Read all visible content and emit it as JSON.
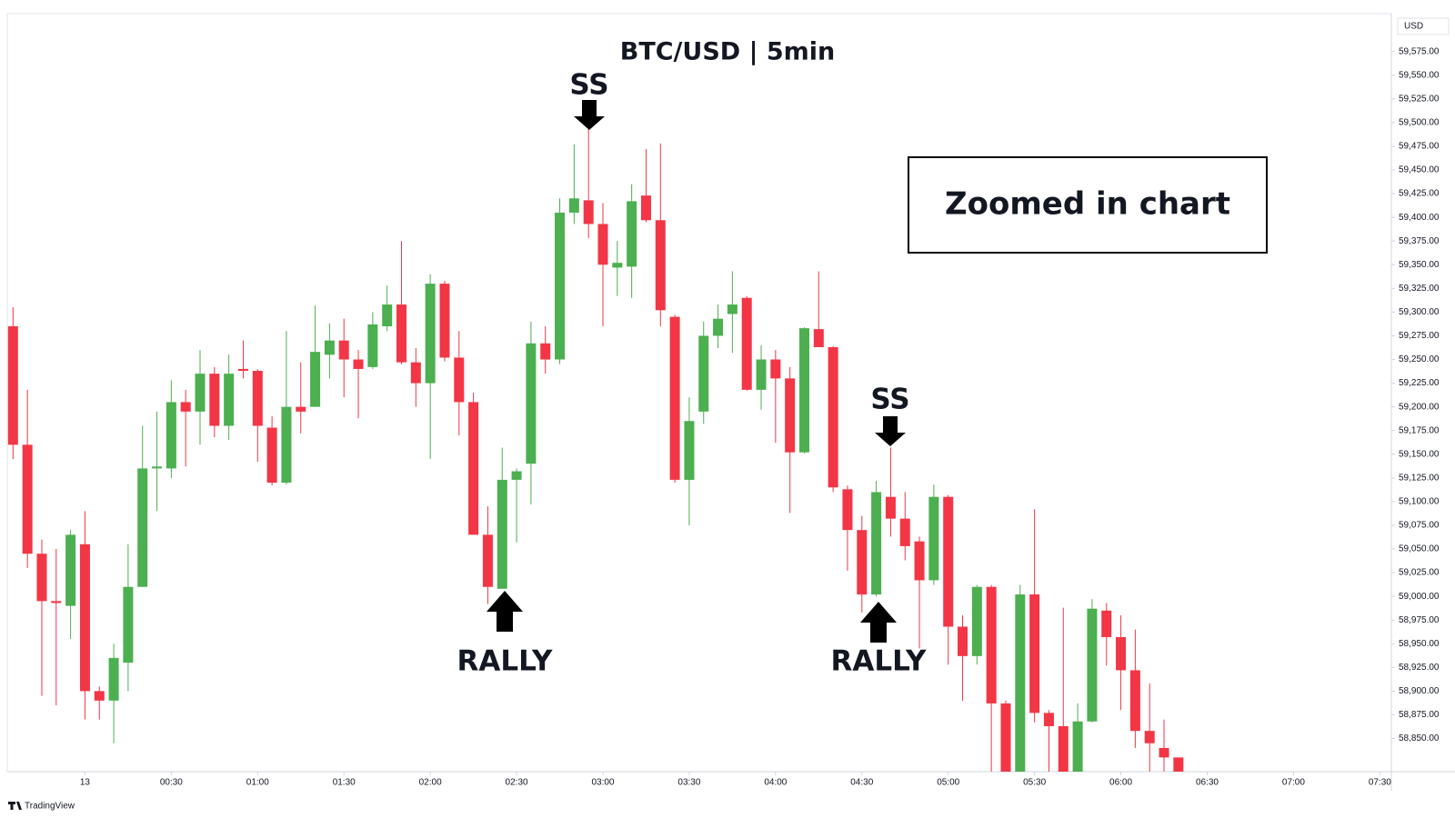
{
  "chart_data": {
    "type": "candlestick",
    "title": "BTC/USD | 5min",
    "currency": "USD",
    "source": "TradingView",
    "up_color": "#4caf50",
    "down_color": "#f23645",
    "grid": false,
    "x": [
      -25,
      -20,
      -15,
      -10,
      -5,
      0,
      5,
      10,
      15,
      20,
      25,
      30,
      35,
      40,
      45,
      50,
      55,
      60,
      65,
      70,
      75,
      80,
      85,
      90,
      95,
      100,
      105,
      110,
      115,
      120,
      125,
      130,
      135,
      140,
      145,
      150,
      155,
      160,
      165,
      170,
      175,
      180,
      185,
      190,
      195,
      200,
      205,
      210,
      215,
      220,
      225,
      230,
      235,
      240,
      245,
      250,
      255,
      260,
      265,
      270,
      275,
      280,
      285,
      290,
      295,
      300,
      305,
      310,
      315,
      320,
      325,
      330,
      335,
      340,
      345,
      350,
      355,
      360,
      365,
      370,
      375,
      380
    ],
    "open": [
      59285,
      59160,
      59045,
      58995,
      58990,
      59055,
      58900,
      58890,
      58930,
      59010,
      59135,
      59135,
      59205,
      59195,
      59235,
      59180,
      59240,
      59238,
      59178,
      59120,
      59200,
      59200,
      59255,
      59270,
      59250,
      59242,
      59285,
      59308,
      59247,
      59225,
      59330,
      59252,
      59205,
      59065,
      59008,
      59123,
      59140,
      59267,
      59250,
      59405,
      59418,
      59393,
      59347,
      59348,
      59423,
      59397,
      59295,
      59123,
      59195,
      59275,
      59298,
      59315,
      59218,
      59250,
      59230,
      59152,
      59282,
      59263,
      59113,
      59070,
      59002,
      59105,
      59082,
      59058,
      59017,
      59105,
      58968,
      58937,
      59010,
      58887,
      58812,
      59002,
      58877,
      58863,
      58813,
      58868,
      58985,
      58957,
      58922,
      58858,
      58840,
      58830
    ],
    "high": [
      59305,
      59218,
      59060,
      59050,
      59070,
      59090,
      58905,
      58950,
      59055,
      59180,
      59195,
      59228,
      59218,
      59260,
      59242,
      59255,
      59270,
      59240,
      59190,
      59280,
      59247,
      59307,
      59288,
      59293,
      59260,
      59300,
      59328,
      59375,
      59262,
      59340,
      59333,
      59280,
      59215,
      59095,
      59157,
      59135,
      59290,
      59285,
      59420,
      59477,
      59493,
      59415,
      59375,
      59435,
      59472,
      59478,
      59297,
      59210,
      59290,
      59308,
      59343,
      59317,
      59265,
      59260,
      59242,
      59284,
      59343,
      59264,
      59117,
      59085,
      59122,
      59157,
      59110,
      59063,
      59118,
      59107,
      58980,
      59012,
      59012,
      58890,
      59012,
      59092,
      58880,
      58988,
      58887,
      58997,
      58993,
      58980,
      58965,
      58908,
      58870,
      58830
    ],
    "low": [
      59145,
      59030,
      58895,
      58885,
      58955,
      58870,
      58870,
      58845,
      58900,
      59010,
      59090,
      59125,
      59137,
      59160,
      59168,
      59165,
      59230,
      59142,
      59117,
      59118,
      59172,
      59200,
      59230,
      59210,
      59188,
      59240,
      59280,
      59245,
      59200,
      59145,
      59248,
      59170,
      59065,
      58992,
      59008,
      59057,
      59097,
      59235,
      59245,
      59393,
      59378,
      59285,
      59317,
      59315,
      59395,
      59285,
      59120,
      59075,
      59182,
      59262,
      59257,
      59217,
      59197,
      59162,
      59088,
      59151,
      59263,
      59110,
      59027,
      58983,
      59000,
      59063,
      59038,
      58945,
      59012,
      58928,
      58890,
      58928,
      58812,
      58812,
      58812,
      58867,
      58812,
      58812,
      58812,
      58867,
      58927,
      58880,
      58840,
      58812,
      58812,
      58812
    ],
    "close": [
      59160,
      59045,
      58995,
      58993,
      59065,
      58900,
      58890,
      58935,
      59010,
      59135,
      59137,
      59205,
      59195,
      59235,
      59180,
      59235,
      59238,
      59180,
      59120,
      59200,
      59195,
      59258,
      59270,
      59250,
      59240,
      59287,
      59308,
      59247,
      59225,
      59330,
      59252,
      59205,
      59065,
      59010,
      59123,
      59132,
      59267,
      59250,
      59405,
      59420,
      59393,
      59350,
      59352,
      59417,
      59397,
      59302,
      59123,
      59185,
      59275,
      59293,
      59308,
      59218,
      59250,
      59230,
      59152,
      59283,
      59263,
      59115,
      59070,
      59002,
      59110,
      59082,
      59053,
      59017,
      59105,
      58968,
      58937,
      59010,
      58887,
      58812,
      59002,
      58877,
      58863,
      58813,
      58868,
      58987,
      58957,
      58922,
      58858,
      58845,
      58830,
      58812
    ],
    "xlim": [
      -27,
      454
    ],
    "xticks": [
      {
        "value": 0,
        "label": "13"
      },
      {
        "value": 30,
        "label": "00:30"
      },
      {
        "value": 60,
        "label": "01:00"
      },
      {
        "value": 90,
        "label": "01:30"
      },
      {
        "value": 120,
        "label": "02:00"
      },
      {
        "value": 150,
        "label": "02:30"
      },
      {
        "value": 180,
        "label": "03:00"
      },
      {
        "value": 210,
        "label": "03:30"
      },
      {
        "value": 240,
        "label": "04:00"
      },
      {
        "value": 270,
        "label": "04:30"
      },
      {
        "value": 300,
        "label": "05:00"
      },
      {
        "value": 330,
        "label": "05:30"
      },
      {
        "value": 360,
        "label": "06:00"
      },
      {
        "value": 390,
        "label": "06:30"
      },
      {
        "value": 420,
        "label": "07:00"
      },
      {
        "value": 450,
        "label": "07:30"
      }
    ],
    "ylim": [
      58815,
      59615
    ],
    "yticks": [
      {
        "value": 58850,
        "label": "58,850.00"
      },
      {
        "value": 58875,
        "label": "58,875.00"
      },
      {
        "value": 58900,
        "label": "58,900.00"
      },
      {
        "value": 58925,
        "label": "58,925.00"
      },
      {
        "value": 58950,
        "label": "58,950.00"
      },
      {
        "value": 58975,
        "label": "58,975.00"
      },
      {
        "value": 59000,
        "label": "59,000.00"
      },
      {
        "value": 59025,
        "label": "59,025.00"
      },
      {
        "value": 59050,
        "label": "59,050.00"
      },
      {
        "value": 59075,
        "label": "59,075.00"
      },
      {
        "value": 59100,
        "label": "59,100.00"
      },
      {
        "value": 59125,
        "label": "59,125.00"
      },
      {
        "value": 59150,
        "label": "59,150.00"
      },
      {
        "value": 59175,
        "label": "59,175.00"
      },
      {
        "value": 59200,
        "label": "59,200.00"
      },
      {
        "value": 59225,
        "label": "59,225.00"
      },
      {
        "value": 59250,
        "label": "59,250.00"
      },
      {
        "value": 59275,
        "label": "59,275.00"
      },
      {
        "value": 59300,
        "label": "59,300.00"
      },
      {
        "value": 59325,
        "label": "59,325.00"
      },
      {
        "value": 59350,
        "label": "59,350.00"
      },
      {
        "value": 59375,
        "label": "59,375.00"
      },
      {
        "value": 59400,
        "label": "59,400.00"
      },
      {
        "value": 59425,
        "label": "59,425.00"
      },
      {
        "value": 59450,
        "label": "59,450.00"
      },
      {
        "value": 59475,
        "label": "59,475.00"
      },
      {
        "value": 59500,
        "label": "59,500.00"
      },
      {
        "value": 59525,
        "label": "59,525.00"
      },
      {
        "value": 59550,
        "label": "59,550.00"
      },
      {
        "value": 59575,
        "label": "59,575.00"
      }
    ],
    "annotations": [
      "SS",
      "RALLY",
      "SS",
      "RALLY"
    ],
    "box_text": "Zoomed in chart"
  }
}
